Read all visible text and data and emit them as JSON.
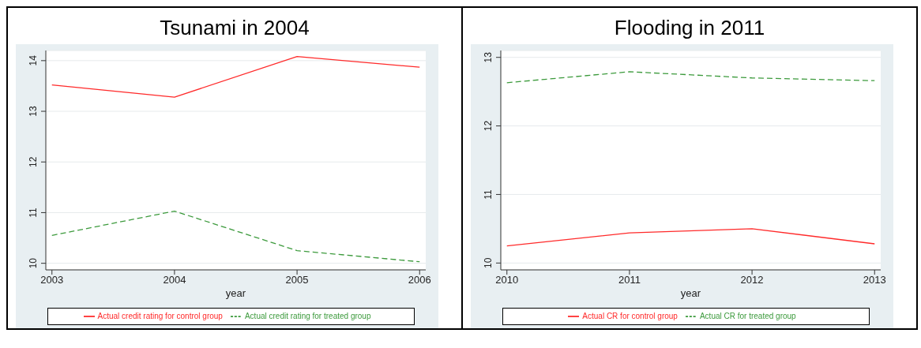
{
  "chart_data": [
    {
      "type": "line",
      "title": "Tsunami in 2004",
      "xlabel": "year",
      "x": [
        2003,
        2004,
        2005,
        2006
      ],
      "xlim": [
        2002.95,
        2006.05
      ],
      "xticks": [
        2003,
        2004,
        2005,
        2006
      ],
      "ylim": [
        9.87,
        14.2
      ],
      "yticks": [
        10,
        11,
        12,
        13,
        14
      ],
      "grid": "y",
      "legend": "bottom",
      "series": [
        {
          "name": "Actual credit rating for treated group",
          "color": "#3c9a3c",
          "line_style": "dashed",
          "values": [
            10.55,
            11.03,
            10.25,
            10.03
          ]
        },
        {
          "name": "Actual credit rating for control group",
          "color": "#ff2a2a",
          "line_style": "solid",
          "values": [
            13.52,
            13.28,
            14.08,
            13.87
          ]
        }
      ]
    },
    {
      "type": "line",
      "title": "Flooding in 2011",
      "xlabel": "year",
      "x": [
        2010,
        2011,
        2012,
        2013
      ],
      "xlim": [
        2009.95,
        2013.05
      ],
      "xticks": [
        2010,
        2011,
        2012,
        2013
      ],
      "ylim": [
        9.9,
        13.1
      ],
      "yticks": [
        10,
        11,
        12,
        13
      ],
      "grid": "y",
      "legend": "bottom",
      "series": [
        {
          "name": "Actual CR for treated group",
          "color": "#3c9a3c",
          "line_style": "dashed",
          "values": [
            12.63,
            12.79,
            12.7,
            12.66
          ]
        },
        {
          "name": "Actual CR for control group",
          "color": "#ff2a2a",
          "line_style": "solid",
          "values": [
            10.25,
            10.44,
            10.5,
            10.28
          ]
        }
      ]
    }
  ]
}
